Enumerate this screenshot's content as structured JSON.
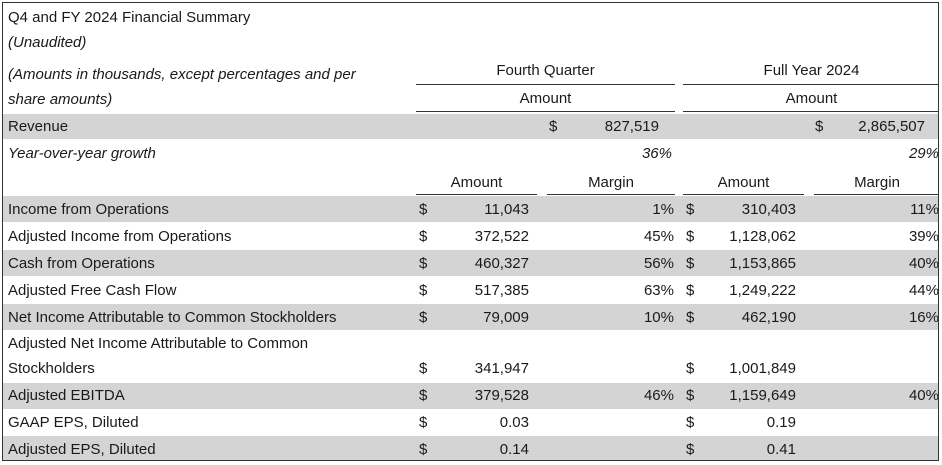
{
  "header": {
    "title": "Q4 and FY 2024 Financial Summary",
    "subtitle": "(Unaudited)",
    "amounts_note_line1": "(Amounts in thousands, except percentages and per",
    "amounts_note_line2": "share amounts)"
  },
  "columns": {
    "fourth_quarter": "Fourth Quarter",
    "full_year": "Full Year 2024",
    "amount": "Amount",
    "margin": "Margin"
  },
  "revenue": {
    "label": "Revenue",
    "currency": "$",
    "q4": "827,519",
    "fy": "2,865,507"
  },
  "growth": {
    "label": "Year-over-year growth",
    "q4": "36%",
    "fy": "29%"
  },
  "rows": [
    {
      "label": "Income from Operations",
      "q4_cur": "$",
      "q4_amount": "11,043",
      "q4_margin": "1%",
      "fy_cur": "$",
      "fy_amount": "310,403",
      "fy_margin": "11%"
    },
    {
      "label": "Adjusted Income from Operations",
      "q4_cur": "$",
      "q4_amount": "372,522",
      "q4_margin": "45%",
      "fy_cur": "$",
      "fy_amount": "1,128,062",
      "fy_margin": "39%"
    },
    {
      "label": "Cash from Operations",
      "q4_cur": "$",
      "q4_amount": "460,327",
      "q4_margin": "56%",
      "fy_cur": "$",
      "fy_amount": "1,153,865",
      "fy_margin": "40%"
    },
    {
      "label": "Adjusted Free Cash Flow",
      "q4_cur": "$",
      "q4_amount": "517,385",
      "q4_margin": "63%",
      "fy_cur": "$",
      "fy_amount": "1,249,222",
      "fy_margin": "44%"
    },
    {
      "label": "Net Income Attributable to Common Stockholders",
      "q4_cur": "$",
      "q4_amount": "79,009",
      "q4_margin": "10%",
      "fy_cur": "$",
      "fy_amount": "462,190",
      "fy_margin": "16%"
    },
    {
      "label_line1": "Adjusted Net Income Attributable to Common",
      "label_line2": "Stockholders",
      "q4_cur": "$",
      "q4_amount": "341,947",
      "q4_margin": "",
      "fy_cur": "$",
      "fy_amount": "1,001,849",
      "fy_margin": ""
    },
    {
      "label": "Adjusted EBITDA",
      "q4_cur": "$",
      "q4_amount": "379,528",
      "q4_margin": "46%",
      "fy_cur": "$",
      "fy_amount": "1,159,649",
      "fy_margin": "40%"
    },
    {
      "label": "GAAP EPS, Diluted",
      "q4_cur": "$",
      "q4_amount": "0.03",
      "q4_margin": "",
      "fy_cur": "$",
      "fy_amount": "0.19",
      "fy_margin": ""
    },
    {
      "label": "Adjusted EPS, Diluted",
      "q4_cur": "$",
      "q4_amount": "0.14",
      "q4_margin": "",
      "fy_cur": "$",
      "fy_amount": "0.41",
      "fy_margin": ""
    }
  ]
}
